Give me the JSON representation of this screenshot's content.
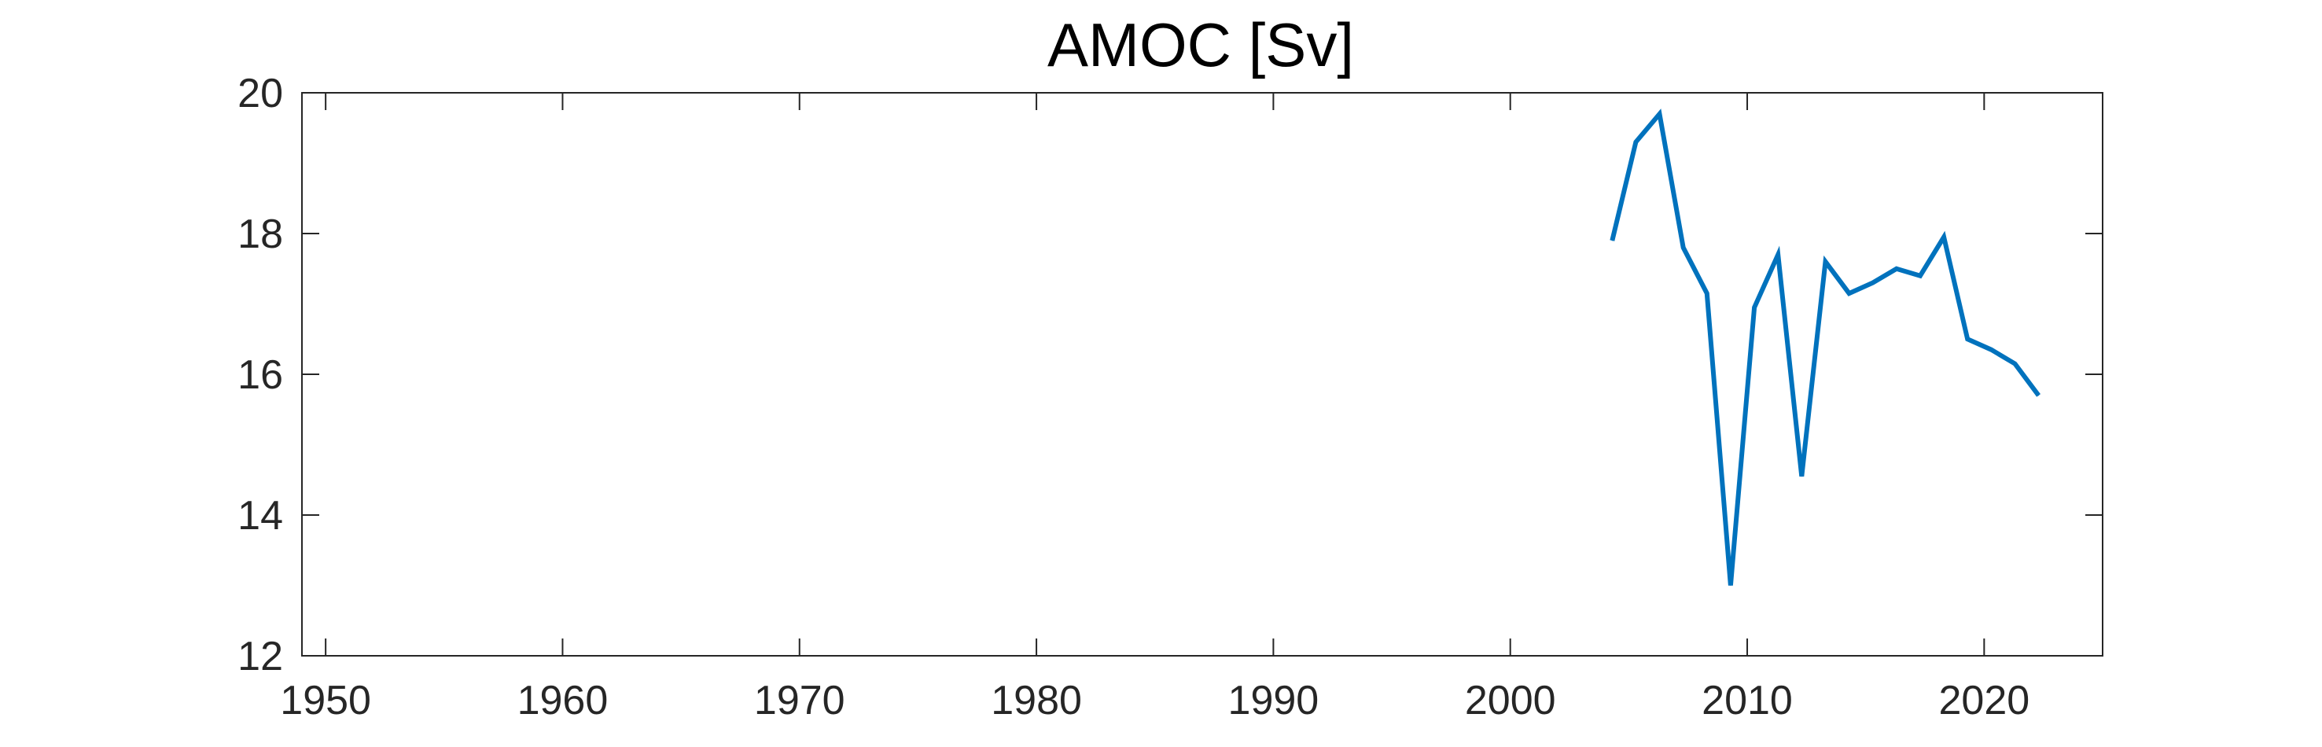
{
  "chart_data": {
    "type": "line",
    "title": "AMOC [Sv]",
    "xlabel": "",
    "ylabel": "",
    "xlim": [
      1949,
      2025
    ],
    "ylim": [
      12,
      20
    ],
    "x_ticks": [
      1950,
      1960,
      1970,
      1980,
      1990,
      2000,
      2010,
      2020
    ],
    "y_ticks": [
      12,
      14,
      16,
      18,
      20
    ],
    "grid": false,
    "line_color": "#0072BD",
    "axis_color": "#262626",
    "series": [
      {
        "x": [
          2004.3,
          2005.3,
          2006.3,
          2007.3,
          2008.3,
          2009.3,
          2010.3,
          2011.3,
          2012.3,
          2013.3,
          2014.3,
          2015.3,
          2016.3,
          2017.3,
          2018.3,
          2019.3,
          2020.3,
          2021.3,
          2022.3
        ],
        "values": [
          17.9,
          19.3,
          19.7,
          17.8,
          17.15,
          13.0,
          16.95,
          17.7,
          14.55,
          17.6,
          17.15,
          17.3,
          17.5,
          17.4,
          17.95,
          16.5,
          16.35,
          16.15,
          15.7
        ]
      }
    ]
  }
}
